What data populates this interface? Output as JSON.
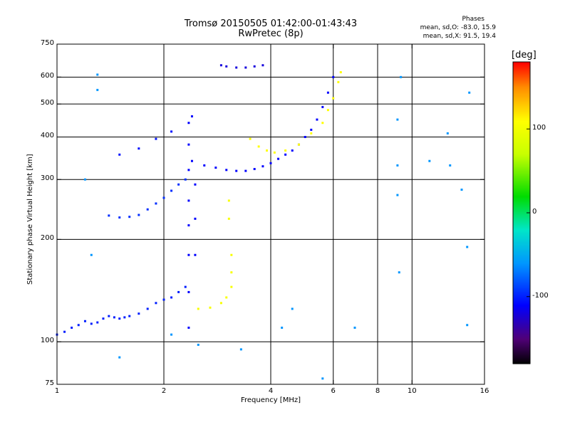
{
  "title_line1": "Tromsø 20150505 01:42:00-01:43:43",
  "title_line2": "RwPretec (8p)",
  "stats": {
    "heading": "Phases",
    "line1": "mean, sd,O: -83.0, 15.9",
    "line2": "mean, sd,X:  91.5, 19.4"
  },
  "colorbar": {
    "label": "[deg]",
    "range": [
      -180,
      180
    ],
    "ticks": [
      100,
      0,
      -100
    ]
  },
  "chart_data": {
    "type": "scatter",
    "title": "Tromsø 20150505 01:42:00-01:43:43",
    "subtitle": "RwPretec (8p)",
    "xlabel": "Frequency [MHz]",
    "ylabel": "Stationary phase Virtual Height [km]",
    "xscale": "log",
    "yscale": "log",
    "xlim": [
      1,
      16
    ],
    "ylim": [
      75,
      750
    ],
    "xticks": [
      1,
      2,
      4,
      6,
      8,
      10,
      16
    ],
    "xgrid": [
      2,
      4,
      6,
      8,
      10
    ],
    "yticks": [
      75,
      100,
      200,
      300,
      400,
      500,
      600,
      750
    ],
    "ygrid": [
      100,
      200,
      300,
      400,
      500,
      600
    ],
    "grid": true,
    "color_by": "phase [deg]",
    "series": [
      {
        "points": [
          [
            1.0,
            105
          ],
          [
            1.05,
            107
          ],
          [
            1.1,
            110
          ],
          [
            1.15,
            112
          ],
          [
            1.2,
            115
          ],
          [
            1.25,
            113
          ],
          [
            1.3,
            114
          ],
          [
            1.35,
            117
          ],
          [
            1.4,
            119
          ],
          [
            1.45,
            118
          ],
          [
            1.5,
            117
          ],
          [
            1.55,
            118
          ],
          [
            1.6,
            119
          ],
          [
            1.7,
            121
          ],
          [
            1.8,
            125
          ],
          [
            1.9,
            130
          ],
          [
            2.0,
            133
          ],
          [
            2.1,
            135
          ],
          [
            2.2,
            140
          ],
          [
            2.3,
            145
          ]
        ],
        "phase": -100
      },
      {
        "points": [
          [
            1.4,
            235
          ],
          [
            1.5,
            232
          ],
          [
            1.6,
            233
          ],
          [
            1.7,
            236
          ],
          [
            1.8,
            245
          ],
          [
            1.9,
            255
          ],
          [
            2.0,
            265
          ],
          [
            2.1,
            278
          ],
          [
            2.2,
            290
          ],
          [
            2.3,
            300
          ]
        ],
        "phase": -95
      },
      {
        "points": [
          [
            1.5,
            355
          ],
          [
            1.7,
            370
          ],
          [
            1.9,
            395
          ],
          [
            2.1,
            415
          ]
        ],
        "phase": -105
      },
      {
        "points": [
          [
            2.35,
            110
          ],
          [
            2.35,
            140
          ],
          [
            2.35,
            180
          ],
          [
            2.35,
            220
          ],
          [
            2.35,
            260
          ],
          [
            2.35,
            320
          ],
          [
            2.35,
            380
          ],
          [
            2.35,
            440
          ],
          [
            2.4,
            460
          ],
          [
            2.45,
            180
          ],
          [
            2.45,
            230
          ],
          [
            2.45,
            290
          ]
        ],
        "phase": -110
      },
      {
        "points": [
          [
            2.4,
            340
          ],
          [
            2.6,
            330
          ],
          [
            2.8,
            325
          ],
          [
            3.0,
            320
          ],
          [
            3.2,
            318
          ],
          [
            3.4,
            318
          ],
          [
            3.6,
            322
          ],
          [
            3.8,
            328
          ],
          [
            4.0,
            335
          ],
          [
            4.2,
            345
          ],
          [
            4.4,
            355
          ],
          [
            4.6,
            365
          ],
          [
            4.8,
            380
          ],
          [
            5.0,
            400
          ],
          [
            5.2,
            420
          ],
          [
            5.4,
            450
          ],
          [
            5.6,
            490
          ],
          [
            5.8,
            540
          ],
          [
            6.0,
            600
          ]
        ],
        "phase": -110
      },
      {
        "points": [
          [
            2.9,
            650
          ],
          [
            3.0,
            645
          ],
          [
            3.2,
            640
          ],
          [
            3.4,
            640
          ],
          [
            3.6,
            645
          ],
          [
            3.8,
            650
          ]
        ],
        "phase": -120
      },
      {
        "points": [
          [
            2.5,
            125
          ],
          [
            2.7,
            126
          ],
          [
            2.9,
            130
          ],
          [
            3.0,
            135
          ],
          [
            3.1,
            145
          ],
          [
            3.1,
            160
          ],
          [
            3.1,
            180
          ],
          [
            3.05,
            230
          ],
          [
            3.05,
            260
          ]
        ],
        "phase": 105
      },
      {
        "points": [
          [
            3.5,
            395
          ],
          [
            3.7,
            375
          ],
          [
            3.9,
            365
          ],
          [
            4.1,
            360
          ],
          [
            4.4,
            365
          ],
          [
            4.8,
            380
          ],
          [
            5.2,
            410
          ],
          [
            5.6,
            440
          ],
          [
            5.8,
            480
          ],
          [
            6.0,
            520
          ],
          [
            6.2,
            580
          ],
          [
            6.3,
            620
          ]
        ],
        "phase": 110
      },
      {
        "points": [
          [
            1.3,
            610
          ],
          [
            1.3,
            550
          ],
          [
            1.2,
            300
          ],
          [
            1.25,
            180
          ],
          [
            1.5,
            90
          ],
          [
            2.1,
            105
          ],
          [
            2.5,
            98
          ],
          [
            3.3,
            95
          ],
          [
            4.3,
            110
          ],
          [
            4.6,
            125
          ],
          [
            5.6,
            78
          ],
          [
            6.9,
            110
          ],
          [
            9.3,
            600
          ],
          [
            9.1,
            450
          ],
          [
            9.1,
            330
          ],
          [
            9.1,
            270
          ],
          [
            9.2,
            160
          ],
          [
            11.2,
            340
          ],
          [
            12.8,
            330
          ],
          [
            13.8,
            280
          ],
          [
            14.3,
            190
          ],
          [
            14.3,
            112
          ],
          [
            14.5,
            540
          ],
          [
            12.6,
            410
          ]
        ],
        "phase": -60
      }
    ]
  }
}
